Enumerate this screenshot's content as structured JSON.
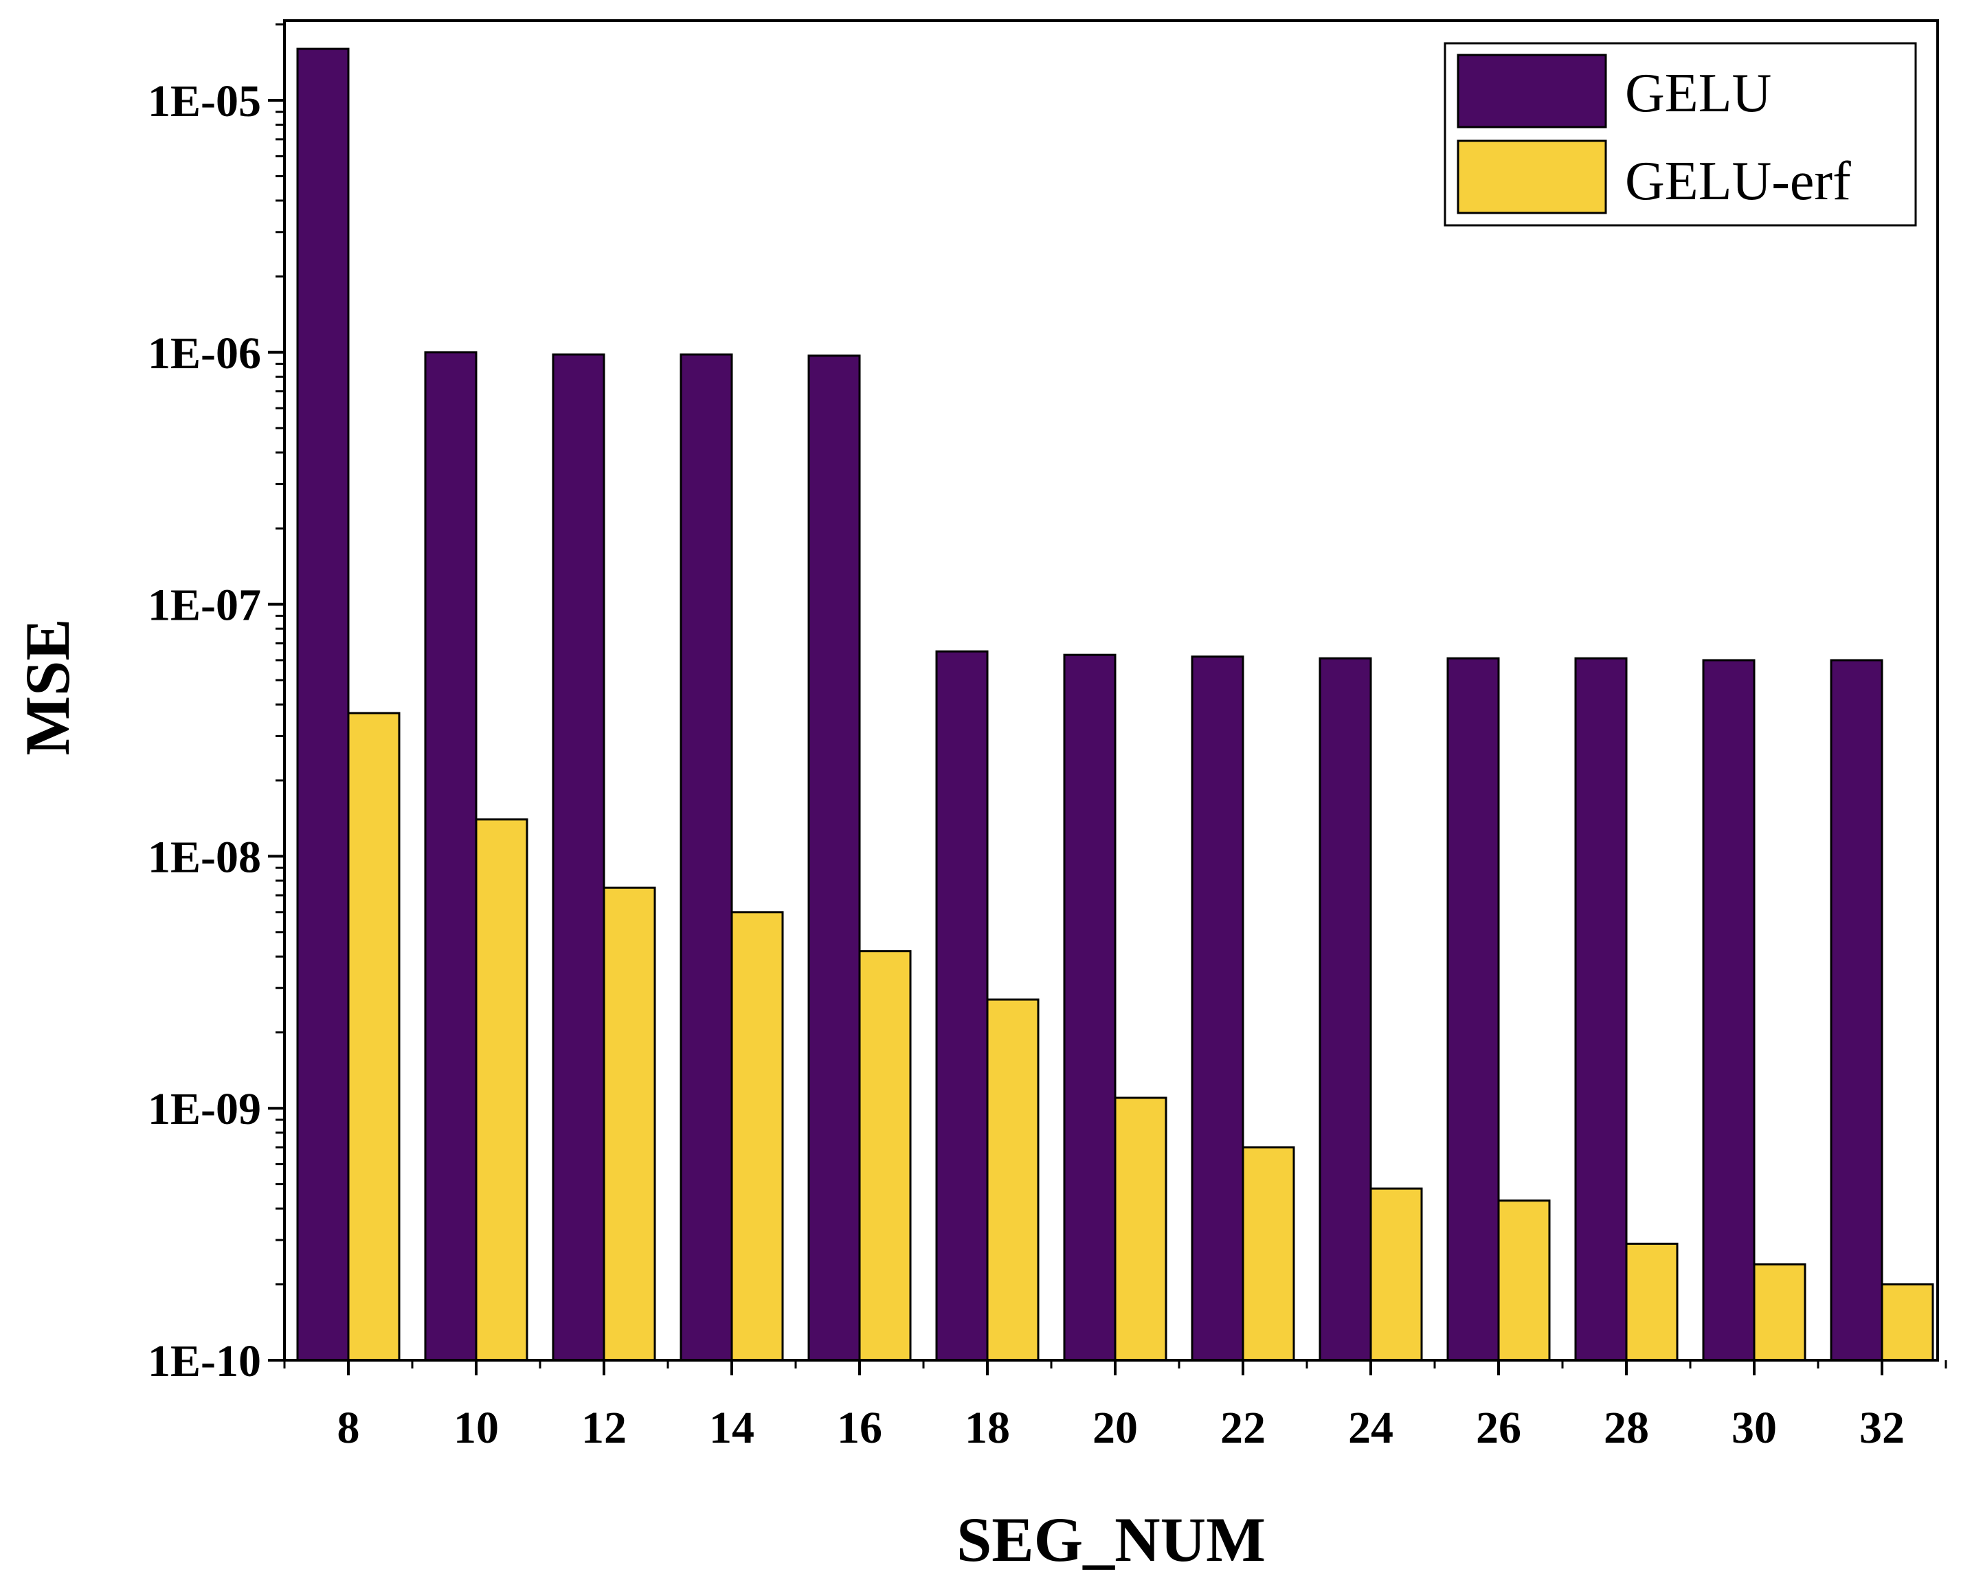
{
  "chart_data": {
    "type": "bar",
    "title": "",
    "xlabel": "SEG_NUM",
    "ylabel": "MSE",
    "yscale": "log",
    "ylim": [
      1e-10,
      3e-05
    ],
    "yticks": [
      1e-10,
      1e-09,
      1e-08,
      1e-07,
      1e-06,
      1e-05
    ],
    "ytick_labels": [
      "1E-10",
      "1E-09",
      "1E-08",
      "1E-07",
      "1E-06",
      "1E-05"
    ],
    "categories": [
      "8",
      "10",
      "12",
      "14",
      "16",
      "18",
      "20",
      "22",
      "24",
      "26",
      "28",
      "30",
      "32"
    ],
    "series": [
      {
        "name": "GELU",
        "color": "#4a0a63",
        "values": [
          1.6e-05,
          1e-06,
          9.8e-07,
          9.8e-07,
          9.7e-07,
          6.5e-08,
          6.3e-08,
          6.2e-08,
          6.1e-08,
          6.1e-08,
          6.1e-08,
          6e-08,
          6e-08
        ]
      },
      {
        "name": "GELU-erf",
        "color": "#f7d03c",
        "values": [
          3.7e-08,
          1.4e-08,
          7.5e-09,
          6e-09,
          4.2e-09,
          2.7e-09,
          1.1e-09,
          7e-10,
          4.8e-10,
          4.3e-10,
          2.9e-10,
          2.4e-10,
          2e-10
        ]
      }
    ],
    "legend": {
      "position": "top-right"
    },
    "grid": false
  }
}
